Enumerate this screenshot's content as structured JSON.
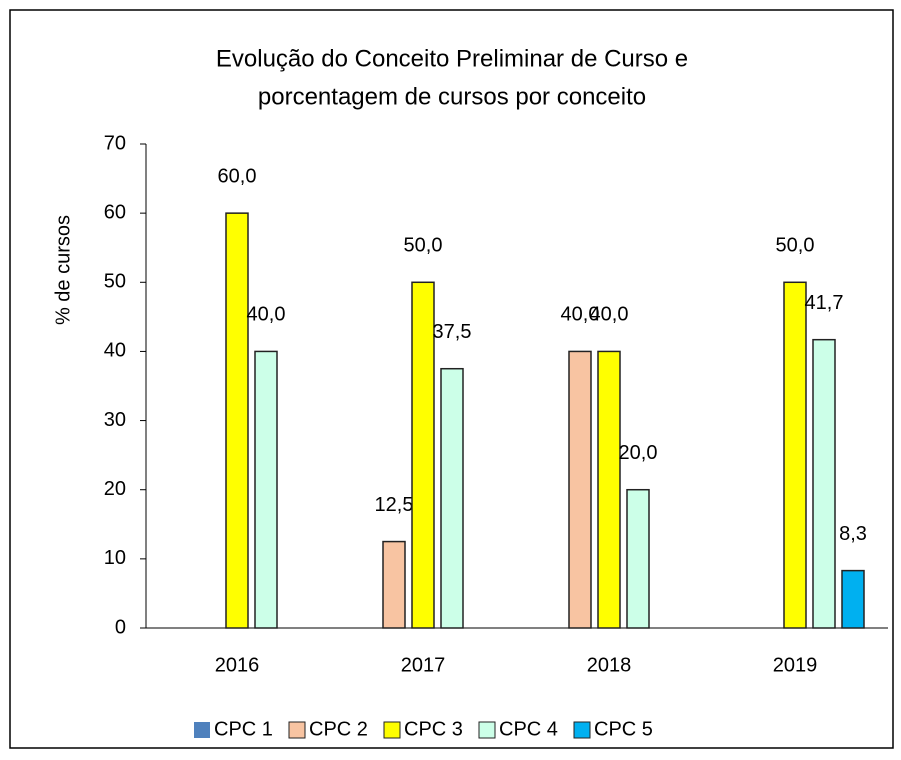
{
  "chart_data": {
    "type": "bar",
    "title": [
      "Evolução do Conceito Preliminar de Curso e",
      "porcentagem de cursos por conceito"
    ],
    "y_label": "% de cursos",
    "categories": [
      "2016",
      "2017",
      "2018",
      "2019"
    ],
    "series": [
      {
        "name": "CPC 1",
        "color": "#4f81bd",
        "values": [
          null,
          null,
          null,
          null
        ],
        "value_labels": [
          null,
          null,
          null,
          null
        ]
      },
      {
        "name": "CPC 2",
        "color": "#f8c4a2",
        "values": [
          null,
          12.5,
          40,
          null
        ],
        "value_labels": [
          null,
          "12,5",
          "40,0",
          null
        ]
      },
      {
        "name": "CPC 3",
        "color": "#ffff00",
        "values": [
          60,
          50,
          40,
          50
        ],
        "value_labels": [
          "60,0",
          "50,0",
          "40,0",
          "50,0"
        ]
      },
      {
        "name": "CPC 4",
        "color": "#ccffe8",
        "values": [
          40,
          37.5,
          20,
          41.7
        ],
        "value_labels": [
          "40,0",
          "37,5",
          "20,0",
          "41,7"
        ]
      },
      {
        "name": "CPC 5",
        "color": "#00b0f0",
        "values": [
          null,
          null,
          null,
          8.3
        ],
        "value_labels": [
          null,
          null,
          null,
          "8,3"
        ]
      }
    ],
    "ylim": [
      0,
      70
    ],
    "yticks": [
      0,
      10,
      20,
      30,
      40,
      50,
      60,
      70
    ],
    "grid": false,
    "legend": "bottom"
  }
}
